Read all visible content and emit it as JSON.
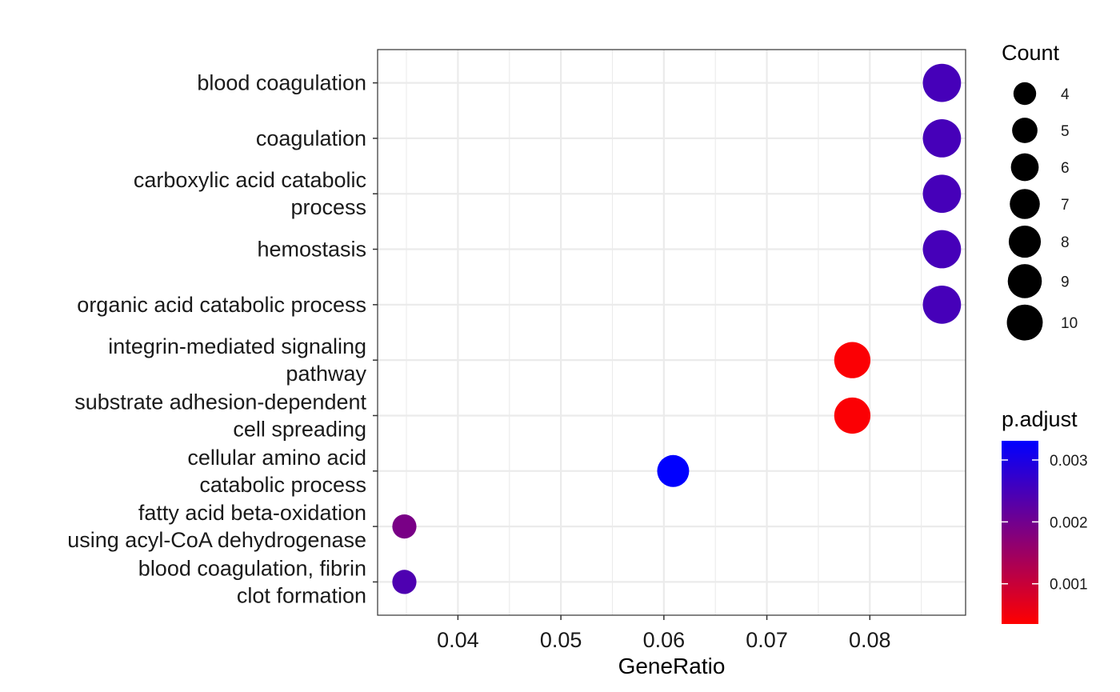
{
  "chart_data": {
    "type": "scatter",
    "xlabel": "GeneRatio",
    "xlim": [
      0.0322,
      0.0893
    ],
    "x_ticks": [
      0.04,
      0.05,
      0.06,
      0.07,
      0.08
    ],
    "x_tick_labels": [
      "0.04",
      "0.05",
      "0.06",
      "0.07",
      "0.08"
    ],
    "grid": true,
    "points": [
      {
        "term": [
          "blood coagulation"
        ],
        "x": 0.087,
        "count": 10,
        "p_adjust": 0.0025
      },
      {
        "term": [
          "coagulation"
        ],
        "x": 0.087,
        "count": 10,
        "p_adjust": 0.0025
      },
      {
        "term": [
          "carboxylic acid catabolic",
          "process"
        ],
        "x": 0.087,
        "count": 10,
        "p_adjust": 0.0025
      },
      {
        "term": [
          "hemostasis"
        ],
        "x": 0.087,
        "count": 10,
        "p_adjust": 0.0025
      },
      {
        "term": [
          "organic acid catabolic process"
        ],
        "x": 0.087,
        "count": 10,
        "p_adjust": 0.0025
      },
      {
        "term": [
          "integrin-mediated signaling",
          "pathway"
        ],
        "x": 0.0783,
        "count": 9,
        "p_adjust": 0.0004
      },
      {
        "term": [
          "substrate adhesion-dependent",
          "cell spreading"
        ],
        "x": 0.0783,
        "count": 9,
        "p_adjust": 0.0004
      },
      {
        "term": [
          "cellular amino acid",
          "catabolic process"
        ],
        "x": 0.0609,
        "count": 7,
        "p_adjust": 0.0033
      },
      {
        "term": [
          "fatty acid beta-oxidation",
          "using acyl-CoA dehydrogenase"
        ],
        "x": 0.0348,
        "count": 4,
        "p_adjust": 0.0019
      },
      {
        "term": [
          "blood coagulation, fibrin",
          "clot formation"
        ],
        "x": 0.0348,
        "count": 4,
        "p_adjust": 0.0024
      }
    ],
    "size_legend": {
      "title": "Count",
      "values": [
        4,
        5,
        6,
        7,
        8,
        9,
        10
      ],
      "labels": [
        "4",
        "5",
        "6",
        "7",
        "8",
        "9",
        "10"
      ],
      "color": "#000000"
    },
    "color_legend": {
      "title": "p.adjust",
      "range": [
        0.00035,
        0.00331
      ],
      "ticks": [
        0.001,
        0.002,
        0.003
      ],
      "tick_labels": [
        "0.001",
        "0.002",
        "0.003"
      ],
      "low_color": "#ff0000",
      "high_color": "#0000ff"
    }
  }
}
